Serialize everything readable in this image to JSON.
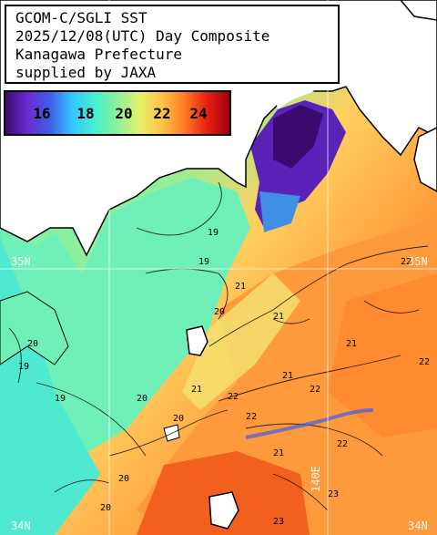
{
  "title": {
    "lines": [
      "GCOM-C/SGLI SST",
      "2025/12/08(UTC) Day Composite",
      "Kanagawa Prefecture",
      "supplied by JAXA"
    ]
  },
  "colorbar": {
    "ticks": [
      "16",
      "18",
      "20",
      "22",
      "24"
    ],
    "colors": [
      "#3a0a6e",
      "#6a2bd0",
      "#3f5fe8",
      "#34c8ff",
      "#45f0d0",
      "#8ff09a",
      "#e8f06a",
      "#ffc247",
      "#ff7a25",
      "#e8200f",
      "#a00010"
    ]
  },
  "graticule": {
    "lat_labels": [
      "35N",
      "35N",
      "34N",
      "34N"
    ],
    "lon_labels": [
      "140E"
    ]
  },
  "contours": [
    "19",
    "19",
    "19",
    "19",
    "20",
    "20",
    "20",
    "20",
    "20",
    "20",
    "21",
    "21",
    "21",
    "21",
    "21",
    "21",
    "22",
    "22",
    "22",
    "22",
    "22",
    "22",
    "23",
    "23"
  ],
  "colors": {
    "land": "#ffffff",
    "coast": "#000000",
    "cool_water": "#6cf0b0",
    "warm_water": "#ff8c3a",
    "cold_bay": "#5b22b8",
    "hot_water": "#f04a18"
  }
}
